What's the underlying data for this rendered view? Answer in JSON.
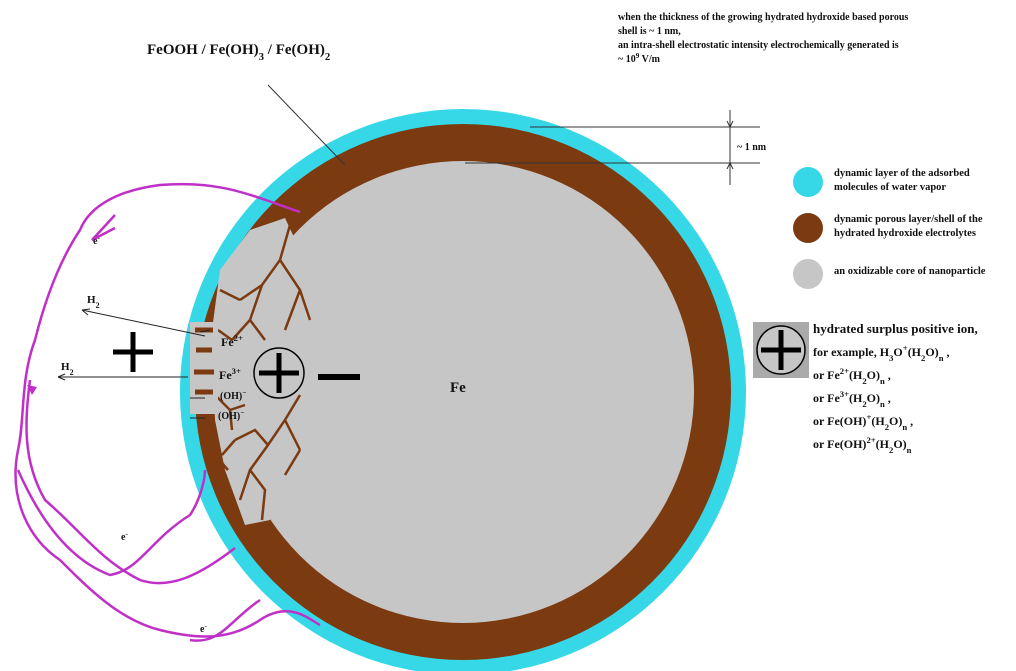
{
  "note": {
    "lines": [
      "when the thickness of the growing hydrated hydroxide based porous",
      "shell  is  ~ 1 nm,",
      "an intra-shell electrostatic intensity electrochemically generated is"
    ],
    "last": [
      "~ 10",
      {
        "sup": "9"
      },
      "  V/m"
    ]
  },
  "shell_formula": [
    "FeOOH / Fe(OH)",
    {
      "sub": "3"
    },
    " / Fe(OH)",
    {
      "sub": "2"
    }
  ],
  "thickness": "~ 1 nm",
  "legend": [
    {
      "color": "#36d8e8",
      "lines": [
        "dynamic layer of the adsorbed",
        "molecules of water vapor"
      ]
    },
    {
      "color": "#7b3a10",
      "lines": [
        "dynamic porous layer/shell of the",
        "hydrated hydroxide electrolytes"
      ]
    },
    {
      "color": "#c6c6c6",
      "lines": [
        "an oxidizable core of nanoparticle"
      ]
    }
  ],
  "core": "Fe",
  "pore_species": [
    [
      "Fe",
      {
        "sup": "2+"
      }
    ],
    [
      "Fe",
      {
        "sup": "3+"
      }
    ],
    [
      "(OH)",
      {
        "sup": "−"
      }
    ],
    [
      "(OH)",
      {
        "sup": "−"
      }
    ]
  ],
  "gas": [
    [
      "H",
      {
        "sub": "2"
      }
    ],
    [
      "H",
      {
        "sub": "2"
      }
    ]
  ],
  "electrons": [
    [
      "e",
      {
        "sup": "-"
      }
    ],
    [
      "e",
      {
        "sup": "-"
      }
    ],
    [
      "e",
      {
        "sup": "-"
      }
    ]
  ],
  "ion": {
    "title": "hydrated surplus positive ion,",
    "examples": [
      [
        "for example, H",
        {
          "sub": "3"
        },
        "O",
        {
          "sup": "+"
        },
        "(H",
        {
          "sub": "2"
        },
        "O)",
        {
          "sub": "n"
        },
        " ,"
      ],
      [
        "or Fe",
        {
          "sup": "2+"
        },
        "(H",
        {
          "sub": "2"
        },
        "O)",
        {
          "sub": "n"
        },
        " ,"
      ],
      [
        "or Fe",
        {
          "sup": "3+"
        },
        "(H",
        {
          "sub": "2"
        },
        "O)",
        {
          "sub": "n"
        },
        " ,"
      ],
      [
        "or Fe(OH)",
        {
          "sup": "+"
        },
        "(H",
        {
          "sub": "2"
        },
        "O)",
        {
          "sub": "n"
        },
        " ,"
      ],
      [
        "or Fe(OH)",
        {
          "sup": "2+"
        },
        "(H",
        {
          "sub": "2"
        },
        "O)",
        {
          "sub": "n"
        }
      ]
    ]
  }
}
